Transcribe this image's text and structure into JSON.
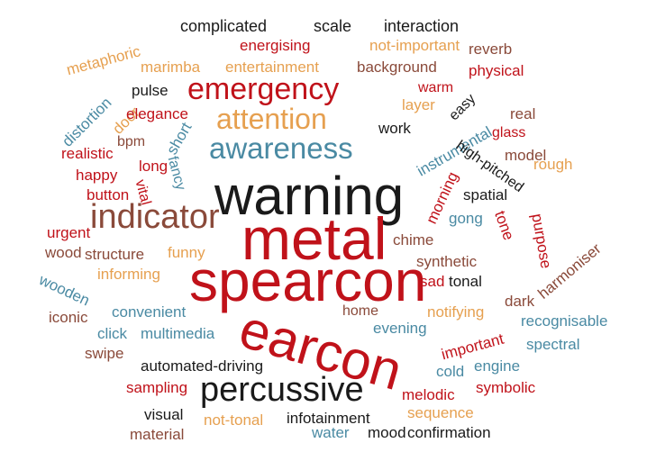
{
  "colors": {
    "red": "#c0121a",
    "orange": "#e6a050",
    "teal": "#4a8aa3",
    "brown": "#8a4a3a",
    "black": "#1a1a1a"
  },
  "words": [
    {
      "text": "warning",
      "color": "black"
    },
    {
      "text": "metal",
      "color": "red"
    },
    {
      "text": "spearcon",
      "color": "red"
    },
    {
      "text": "earcon",
      "color": "red"
    },
    {
      "text": "indicator",
      "color": "brown"
    },
    {
      "text": "percussive",
      "color": "black"
    },
    {
      "text": "awareness",
      "color": "teal"
    },
    {
      "text": "attention",
      "color": "orange"
    },
    {
      "text": "emergency",
      "color": "red"
    },
    {
      "text": "complicated",
      "color": "black"
    },
    {
      "text": "scale",
      "color": "black"
    },
    {
      "text": "interaction",
      "color": "black"
    },
    {
      "text": "metaphoric",
      "color": "orange"
    },
    {
      "text": "energising",
      "color": "red"
    },
    {
      "text": "not-important",
      "color": "orange"
    },
    {
      "text": "reverb",
      "color": "brown"
    },
    {
      "text": "marimba",
      "color": "orange"
    },
    {
      "text": "entertainment",
      "color": "orange"
    },
    {
      "text": "background",
      "color": "brown"
    },
    {
      "text": "physical",
      "color": "red"
    },
    {
      "text": "pulse",
      "color": "black"
    },
    {
      "text": "warm",
      "color": "red"
    },
    {
      "text": "layer",
      "color": "orange"
    },
    {
      "text": "distortion",
      "color": "teal"
    },
    {
      "text": "door",
      "color": "orange"
    },
    {
      "text": "elegance",
      "color": "red"
    },
    {
      "text": "easy",
      "color": "black"
    },
    {
      "text": "instrumental",
      "color": "teal"
    },
    {
      "text": "real",
      "color": "brown"
    },
    {
      "text": "work",
      "color": "black"
    },
    {
      "text": "glass",
      "color": "red"
    },
    {
      "text": "realistic",
      "color": "red"
    },
    {
      "text": "bpm",
      "color": "brown"
    },
    {
      "text": "short",
      "color": "teal"
    },
    {
      "text": "high-pitched",
      "color": "black"
    },
    {
      "text": "model",
      "color": "brown"
    },
    {
      "text": "happy",
      "color": "red"
    },
    {
      "text": "long",
      "color": "red"
    },
    {
      "text": "fancy",
      "color": "teal"
    },
    {
      "text": "morning",
      "color": "red"
    },
    {
      "text": "rough",
      "color": "orange"
    },
    {
      "text": "button",
      "color": "red"
    },
    {
      "text": "vital",
      "color": "red"
    },
    {
      "text": "spatial",
      "color": "black"
    },
    {
      "text": "gong",
      "color": "teal"
    },
    {
      "text": "tone",
      "color": "red"
    },
    {
      "text": "purpose",
      "color": "red"
    },
    {
      "text": "harmoniser",
      "color": "brown"
    },
    {
      "text": "urgent",
      "color": "red"
    },
    {
      "text": "wood",
      "color": "brown"
    },
    {
      "text": "structure",
      "color": "brown"
    },
    {
      "text": "funny",
      "color": "orange"
    },
    {
      "text": "chime",
      "color": "brown"
    },
    {
      "text": "synthetic",
      "color": "brown"
    },
    {
      "text": "wooden",
      "color": "teal"
    },
    {
      "text": "informing",
      "color": "orange"
    },
    {
      "text": "sad",
      "color": "red"
    },
    {
      "text": "tonal",
      "color": "black"
    },
    {
      "text": "dark",
      "color": "brown"
    },
    {
      "text": "iconic",
      "color": "brown"
    },
    {
      "text": "convenient",
      "color": "teal"
    },
    {
      "text": "home",
      "color": "brown"
    },
    {
      "text": "notifying",
      "color": "orange"
    },
    {
      "text": "recognisable",
      "color": "teal"
    },
    {
      "text": "click",
      "color": "teal"
    },
    {
      "text": "multimedia",
      "color": "teal"
    },
    {
      "text": "evening",
      "color": "teal"
    },
    {
      "text": "important",
      "color": "red"
    },
    {
      "text": "spectral",
      "color": "teal"
    },
    {
      "text": "swipe",
      "color": "brown"
    },
    {
      "text": "automated-driving",
      "color": "black"
    },
    {
      "text": "cold",
      "color": "teal"
    },
    {
      "text": "engine",
      "color": "teal"
    },
    {
      "text": "sampling",
      "color": "red"
    },
    {
      "text": "melodic",
      "color": "red"
    },
    {
      "text": "symbolic",
      "color": "red"
    },
    {
      "text": "visual",
      "color": "black"
    },
    {
      "text": "not-tonal",
      "color": "orange"
    },
    {
      "text": "infotainment",
      "color": "black"
    },
    {
      "text": "sequence",
      "color": "orange"
    },
    {
      "text": "material",
      "color": "brown"
    },
    {
      "text": "water",
      "color": "teal"
    },
    {
      "text": "mood",
      "color": "black"
    },
    {
      "text": "confirmation",
      "color": "black"
    }
  ]
}
